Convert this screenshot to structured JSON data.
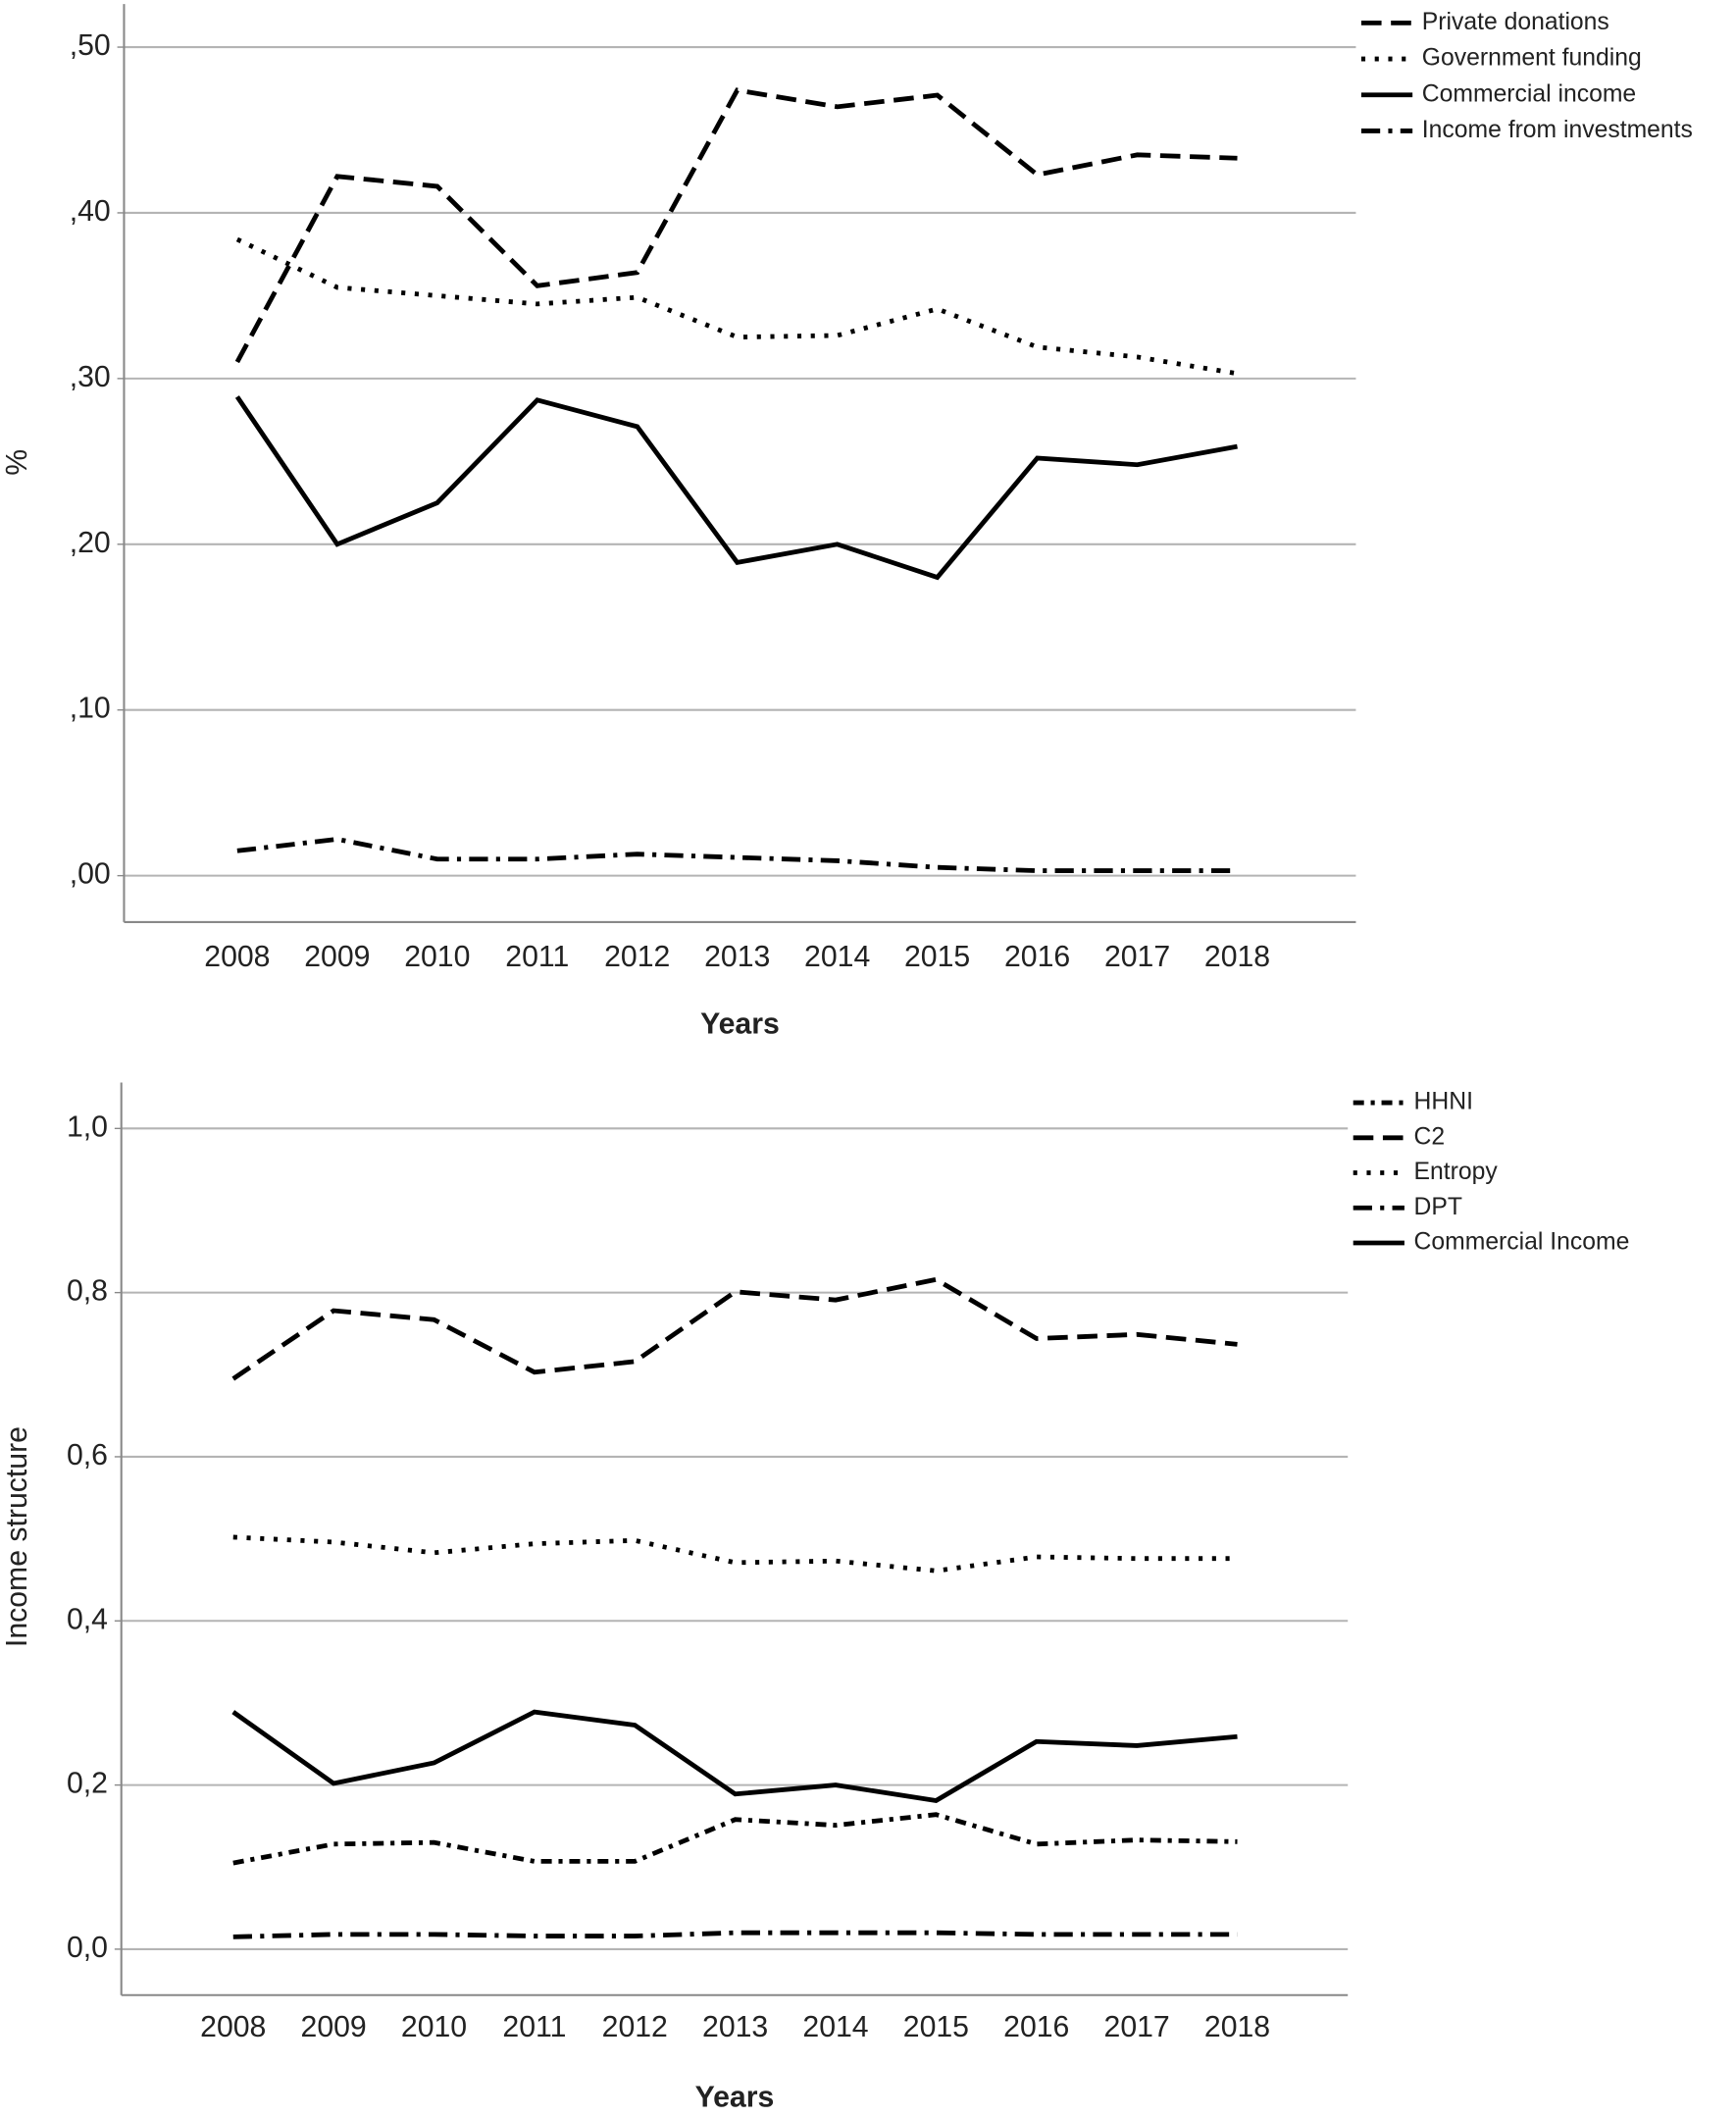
{
  "chart_data": [
    {
      "type": "line",
      "y_title": "%",
      "x_title": "Years",
      "categories": [
        "2008",
        "2009",
        "2010",
        "2011",
        "2012",
        "2013",
        "2014",
        "2015",
        "2016",
        "2017",
        "2018"
      ],
      "ylim": [
        -0.028,
        0.526
      ],
      "yticks": [
        {
          "value": 0,
          "label": ",00"
        },
        {
          "value": 0.1,
          "label": ",10"
        },
        {
          "value": 0.2,
          "label": ",20"
        },
        {
          "value": 0.3,
          "label": ",30"
        },
        {
          "value": 0.4,
          "label": ",40"
        },
        {
          "value": 0.5,
          "label": ",50"
        }
      ],
      "grid": true,
      "legend": "right",
      "series": [
        {
          "name": "Private donations",
          "color": "#000000",
          "dash": "dashed",
          "values": [
            0.31,
            0.422,
            0.416,
            0.356,
            0.364,
            0.474,
            0.464,
            0.471,
            0.423,
            0.435,
            0.433
          ]
        },
        {
          "name": "Government funding",
          "color": "#000000",
          "dash": "dotted",
          "values": [
            0.384,
            0.355,
            0.35,
            0.345,
            0.349,
            0.325,
            0.326,
            0.342,
            0.319,
            0.313,
            0.303
          ]
        },
        {
          "name": "Commercial income",
          "color": "#000000",
          "dash": "solid",
          "values": [
            0.289,
            0.2,
            0.225,
            0.287,
            0.271,
            0.189,
            0.2,
            0.18,
            0.252,
            0.248,
            0.259
          ]
        },
        {
          "name": "Income from investments",
          "color": "#000000",
          "dash": "dashdot",
          "values": [
            0.015,
            0.022,
            0.01,
            0.01,
            0.013,
            0.011,
            0.009,
            0.005,
            0.003,
            0.003,
            0.003
          ]
        }
      ]
    },
    {
      "type": "line",
      "y_title": "Income structure",
      "x_title": "Years",
      "categories": [
        "2008",
        "2009",
        "2010",
        "2011",
        "2012",
        "2013",
        "2014",
        "2015",
        "2016",
        "2017",
        "2018"
      ],
      "ylim": [
        -0.056,
        1.056
      ],
      "yticks": [
        {
          "value": 0,
          "label": "0,0"
        },
        {
          "value": 0.2,
          "label": "0,2"
        },
        {
          "value": 0.4,
          "label": "0,4"
        },
        {
          "value": 0.6,
          "label": "0,6"
        },
        {
          "value": 0.8,
          "label": "0,8"
        },
        {
          "value": 1,
          "label": "1,0"
        }
      ],
      "grid": true,
      "legend": "right",
      "series": [
        {
          "name": "HHNI",
          "color": "#000000",
          "dash": "dashdotdot",
          "values": [
            0.105,
            0.128,
            0.13,
            0.107,
            0.107,
            0.158,
            0.151,
            0.164,
            0.128,
            0.133,
            0.131
          ]
        },
        {
          "name": "C2",
          "color": "#000000",
          "dash": "dashed",
          "values": [
            0.695,
            0.778,
            0.767,
            0.703,
            0.716,
            0.801,
            0.791,
            0.816,
            0.744,
            0.749,
            0.737
          ]
        },
        {
          "name": "Entropy",
          "color": "#000000",
          "dash": "dotted",
          "values": [
            0.502,
            0.496,
            0.483,
            0.494,
            0.498,
            0.471,
            0.473,
            0.461,
            0.478,
            0.476,
            0.476
          ]
        },
        {
          "name": "DPT",
          "color": "#000000",
          "dash": "dashdot",
          "values": [
            0.015,
            0.018,
            0.018,
            0.016,
            0.016,
            0.02,
            0.02,
            0.02,
            0.018,
            0.018,
            0.018
          ]
        },
        {
          "name": "Commercial Income",
          "color": "#000000",
          "dash": "solid",
          "values": [
            0.289,
            0.202,
            0.227,
            0.289,
            0.273,
            0.189,
            0.2,
            0.181,
            0.253,
            0.248,
            0.259
          ]
        }
      ]
    }
  ]
}
